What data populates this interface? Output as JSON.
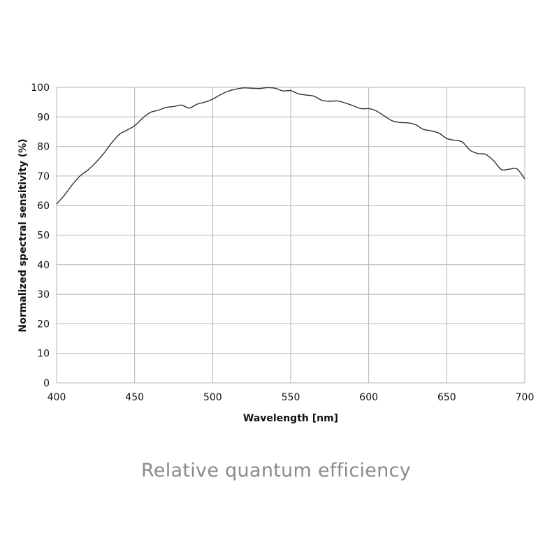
{
  "chart_data": {
    "type": "line",
    "title": "Relative quantum efficiency",
    "xlabel": "Wavelength [nm]",
    "ylabel": "Normalized spectral sensitivity (%)",
    "xlim": [
      400,
      700
    ],
    "ylim": [
      0,
      100
    ],
    "xticks": [
      400,
      450,
      500,
      550,
      600,
      650,
      700
    ],
    "yticks": [
      0,
      10,
      20,
      30,
      40,
      50,
      60,
      70,
      80,
      90,
      100
    ],
    "grid": true,
    "line_color": "#333333",
    "series": [
      {
        "name": "Relative quantum efficiency",
        "x": [
          400,
          405,
          410,
          415,
          420,
          425,
          430,
          435,
          440,
          445,
          450,
          455,
          460,
          465,
          470,
          475,
          480,
          485,
          490,
          495,
          500,
          505,
          510,
          515,
          520,
          525,
          530,
          535,
          540,
          545,
          550,
          555,
          560,
          565,
          570,
          575,
          580,
          585,
          590,
          595,
          600,
          605,
          610,
          615,
          620,
          625,
          630,
          635,
          640,
          645,
          650,
          655,
          660,
          665,
          670,
          675,
          680,
          685,
          690,
          695,
          700
        ],
        "y": [
          60.5,
          63.5,
          67,
          70,
          72,
          74.5,
          77.5,
          81,
          84,
          85.5,
          87,
          89.5,
          91.5,
          92.2,
          93.2,
          93.5,
          94,
          93,
          94.3,
          95,
          96,
          97.5,
          98.7,
          99.4,
          99.8,
          99.7,
          99.6,
          99.9,
          99.7,
          98.8,
          98.9,
          97.8,
          97.4,
          97,
          95.6,
          95.3,
          95.4,
          94.7,
          93.8,
          92.8,
          92.8,
          92,
          90.3,
          88.7,
          88.1,
          88,
          87.4,
          85.8,
          85.3,
          84.5,
          82.7,
          82.1,
          81.5,
          78.7,
          77.6,
          77.3,
          75.2,
          72.2,
          72.3,
          72.4,
          69
        ]
      }
    ]
  }
}
